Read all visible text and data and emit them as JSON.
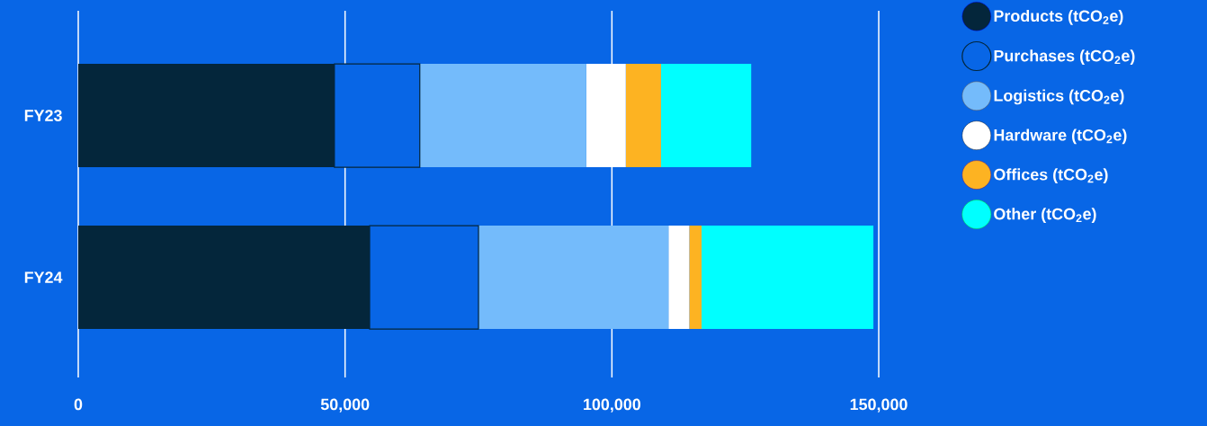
{
  "chart_data": {
    "type": "bar",
    "orientation": "horizontal",
    "stacked": true,
    "categories": [
      "FY23",
      "FY24"
    ],
    "series": [
      {
        "name": "Products (tCO$_{2}$e)",
        "color": "#04263b",
        "values": [
          48000,
          54600
        ]
      },
      {
        "name": "Purchases (tCO$_{2}$e)",
        "color": "#0866e6",
        "values": [
          16000,
          20400
        ]
      },
      {
        "name": "Logistics (tCO$_{2}$e)",
        "color": "#74bbfb",
        "values": [
          31200,
          35600
        ]
      },
      {
        "name": "Hardware (tCO$_{2}$e)",
        "color": "#ffffff",
        "values": [
          7400,
          3900
        ]
      },
      {
        "name": "Offices (tCO$_{2}$e)",
        "color": "#fdb322",
        "values": [
          6600,
          2300
        ]
      },
      {
        "name": "Other (tCO$_{2}$e)",
        "color": "#00ffff",
        "values": [
          16900,
          32200
        ]
      }
    ],
    "xlim": [
      0,
      150000
    ],
    "xticks": [
      0,
      {
        "value": 50000,
        "label": "50,000"
      },
      {
        "value": 100000,
        "label": "100,000"
      },
      {
        "value": 150000,
        "label": "150,000"
      }
    ],
    "grid": "x",
    "legend": "right"
  }
}
